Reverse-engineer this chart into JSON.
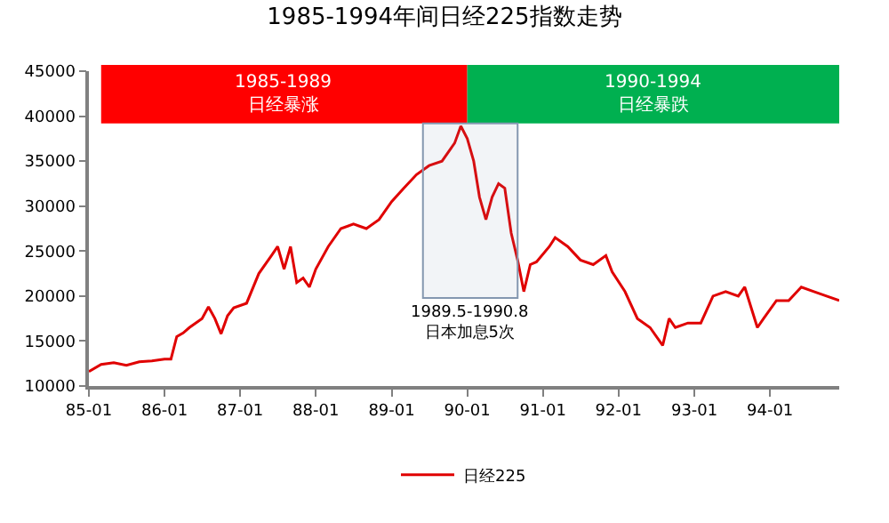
{
  "chart_data": {
    "type": "line",
    "title": "1985-1994年间日经225指数走势",
    "x": [
      "1985-01",
      "1985-03",
      "1985-05",
      "1985-07",
      "1985-09",
      "1985-11",
      "1986-01",
      "1986-02",
      "1986-03",
      "1986-04",
      "1986-05",
      "1986-07",
      "1986-08",
      "1986-09",
      "1986-10",
      "1986-11",
      "1986-12",
      "1987-02",
      "1987-04",
      "1987-06",
      "1987-07",
      "1987-08",
      "1987-09",
      "1987-10",
      "1987-11",
      "1987-12",
      "1988-01",
      "1988-03",
      "1988-05",
      "1988-07",
      "1988-09",
      "1988-11",
      "1989-01",
      "1989-03",
      "1989-05",
      "1989-07",
      "1989-09",
      "1989-11",
      "1989-12",
      "1990-01",
      "1990-02",
      "1990-03",
      "1990-04",
      "1990-05",
      "1990-06",
      "1990-07",
      "1990-08",
      "1990-09",
      "1990-10",
      "1990-11",
      "1990-12",
      "1991-02",
      "1991-03",
      "1991-05",
      "1991-07",
      "1991-09",
      "1991-11",
      "1991-12",
      "1992-02",
      "1992-04",
      "1992-06",
      "1992-08",
      "1992-09",
      "1992-10",
      "1992-12",
      "1993-02",
      "1993-04",
      "1993-06",
      "1993-08",
      "1993-09",
      "1993-11",
      "1993-12",
      "1994-02",
      "1994-04",
      "1994-06",
      "1994-08",
      "1994-10",
      "1994-12"
    ],
    "series": [
      {
        "name": "日经225",
        "color": "#e00000",
        "values": [
          11600,
          12400,
          12600,
          12300,
          12700,
          12800,
          13000,
          13000,
          15500,
          15900,
          16500,
          17500,
          18800,
          17500,
          15800,
          17800,
          18700,
          19200,
          22500,
          24500,
          25500,
          23000,
          25500,
          21500,
          22000,
          21000,
          23000,
          25500,
          27500,
          28000,
          27500,
          28500,
          30500,
          32000,
          33500,
          34500,
          35000,
          37000,
          38900,
          37500,
          35000,
          31000,
          28500,
          31000,
          32500,
          32000,
          27000,
          24000,
          20500,
          23500,
          23800,
          25500,
          26500,
          25500,
          24000,
          23500,
          24500,
          22700,
          20500,
          17500,
          16500,
          14500,
          17500,
          16500,
          17000,
          17000,
          20000,
          20500,
          20000,
          21000,
          16500,
          17500,
          19500,
          19500,
          21000,
          20500,
          20000,
          19500
        ]
      }
    ],
    "xlim": [
      "1985-01",
      "1994-12"
    ],
    "xticks": [
      {
        "value": "1985-01",
        "label": "85-01"
      },
      {
        "value": "1986-01",
        "label": "86-01"
      },
      {
        "value": "1987-01",
        "label": "87-01"
      },
      {
        "value": "1988-01",
        "label": "88-01"
      },
      {
        "value": "1989-01",
        "label": "89-01"
      },
      {
        "value": "1990-01",
        "label": "90-01"
      },
      {
        "value": "1991-01",
        "label": "91-01"
      },
      {
        "value": "1992-01",
        "label": "92-01"
      },
      {
        "value": "1993-01",
        "label": "93-01"
      },
      {
        "value": "1994-01",
        "label": "94-01"
      }
    ],
    "ylim": [
      10000,
      45000
    ],
    "yticks": [
      10000,
      15000,
      20000,
      25000,
      30000,
      35000,
      40000,
      45000
    ],
    "bands": [
      {
        "axis": "x",
        "from": "1985-03",
        "to": "1990-01",
        "label": "1985-1989\n日经暴涨",
        "color": "#ff0000"
      },
      {
        "axis": "x",
        "from": "1990-01",
        "to": "1994-12",
        "label": "1990-1994\n日经暴跌",
        "color": "#00b050"
      },
      {
        "axis": "x",
        "from": "1989-06",
        "to": "1990-09",
        "label": "1989.5-1990.8\n日本加息5次"
      }
    ],
    "grid": false,
    "legend": "bottom"
  }
}
